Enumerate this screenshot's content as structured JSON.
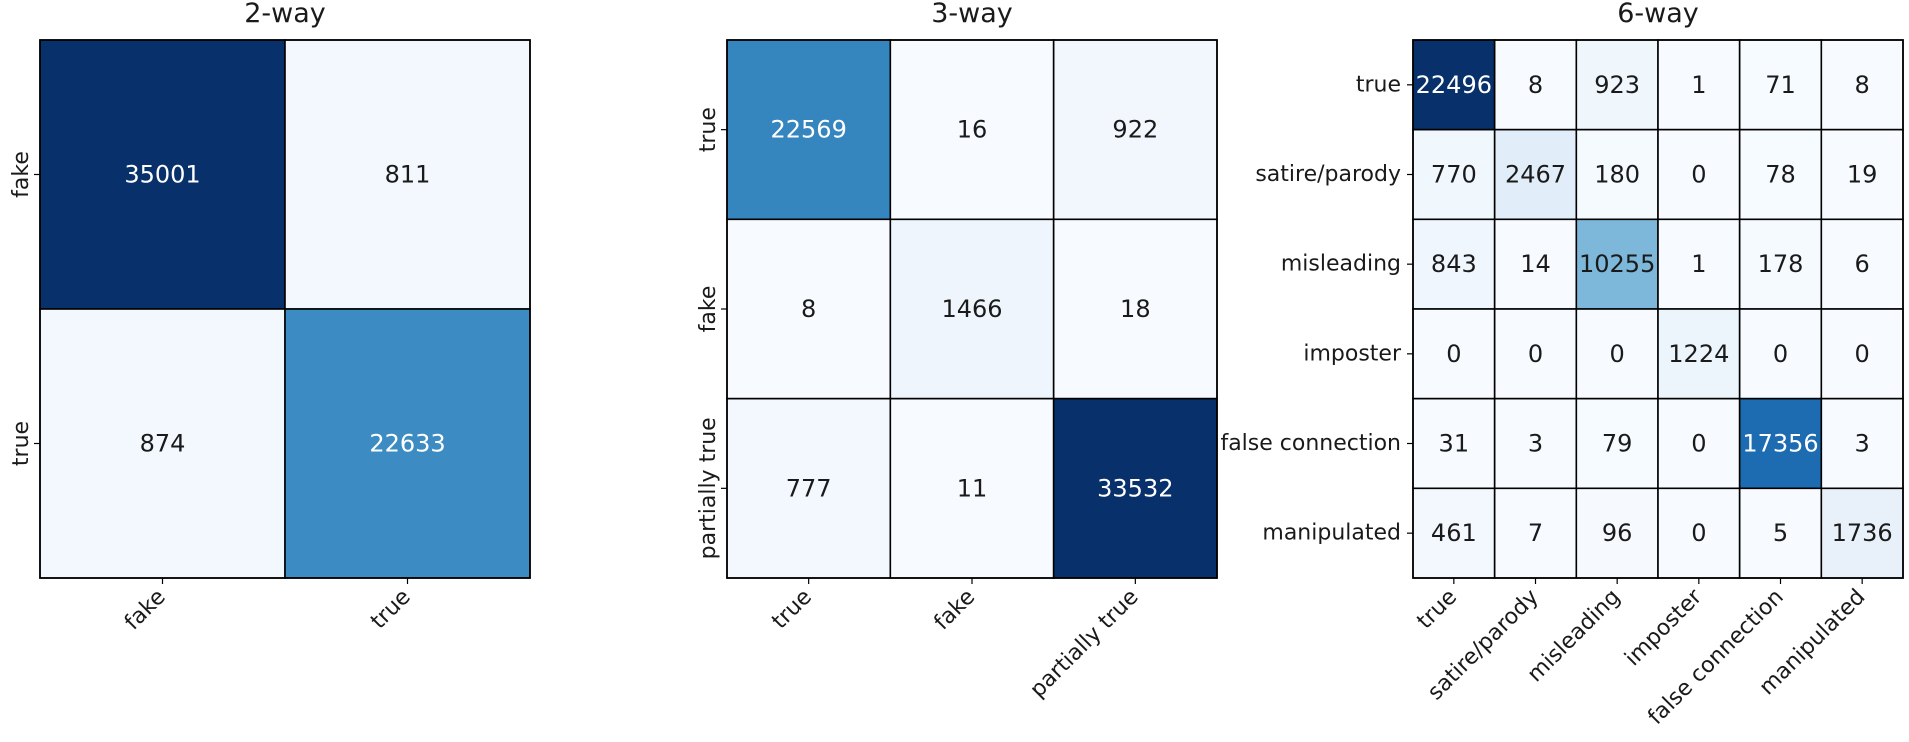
{
  "chart_data": [
    {
      "type": "heatmap",
      "title": "2-way",
      "row_labels": [
        "fake",
        "true"
      ],
      "col_labels": [
        "fake",
        "true"
      ],
      "values": [
        [
          35001,
          811
        ],
        [
          874,
          22633
        ]
      ],
      "colormap": "Blues"
    },
    {
      "type": "heatmap",
      "title": "3-way",
      "row_labels": [
        "true",
        "fake",
        "partially true"
      ],
      "col_labels": [
        "true",
        "fake",
        "partially true"
      ],
      "values": [
        [
          22569,
          16,
          922
        ],
        [
          8,
          1466,
          18
        ],
        [
          777,
          11,
          33532
        ]
      ],
      "colormap": "Blues"
    },
    {
      "type": "heatmap",
      "title": "6-way",
      "row_labels": [
        "true",
        "satire/parody",
        "misleading",
        "imposter",
        "false connection",
        "manipulated"
      ],
      "col_labels": [
        "true",
        "satire/parody",
        "misleading",
        "imposter",
        "false connection",
        "manipulated"
      ],
      "values": [
        [
          22496,
          8,
          923,
          1,
          71,
          8
        ],
        [
          770,
          2467,
          180,
          0,
          78,
          19
        ],
        [
          843,
          14,
          10255,
          1,
          178,
          6
        ],
        [
          0,
          0,
          0,
          1224,
          0,
          0
        ],
        [
          31,
          3,
          79,
          0,
          17356,
          3
        ],
        [
          461,
          7,
          96,
          0,
          5,
          1736
        ]
      ],
      "colormap": "Blues"
    }
  ]
}
